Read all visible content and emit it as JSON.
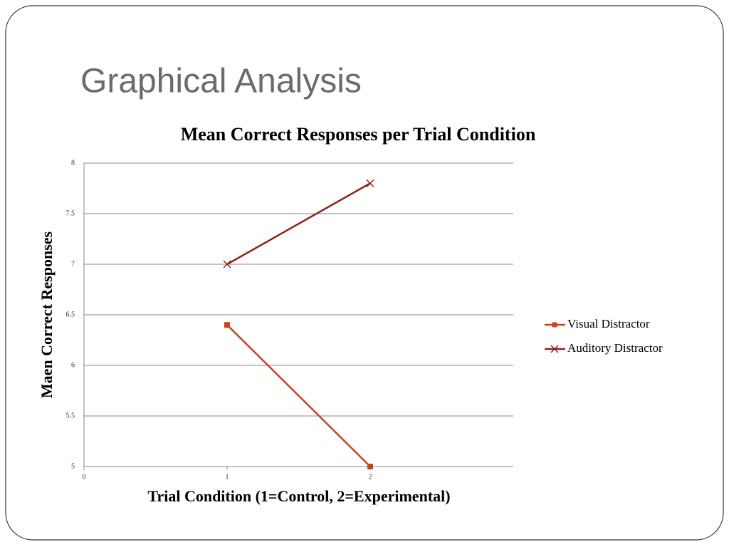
{
  "slide": {
    "title": "Graphical Analysis"
  },
  "chart_data": {
    "type": "line",
    "title": "Mean Correct Responses per Trial Condition",
    "x_label": "Trial Condition (1=Control, 2=Experimental)",
    "y_label": "Maen Correct Responses",
    "x": [
      1,
      2
    ],
    "series": [
      {
        "name": "Visual Distractor",
        "color": "#c5441c",
        "marker": "square",
        "values": [
          6.4,
          5
        ]
      },
      {
        "name": "Auditory Distractor",
        "color": "#8c2418",
        "marker": "x",
        "values": [
          7,
          7.8
        ]
      }
    ],
    "xlim": [
      0,
      3
    ],
    "xticks": [
      0,
      1,
      2
    ],
    "ylim": [
      5,
      8
    ],
    "yticks": [
      5,
      5.5,
      6,
      6.5,
      7,
      7.5,
      8
    ],
    "grid": true,
    "legend": "right"
  }
}
